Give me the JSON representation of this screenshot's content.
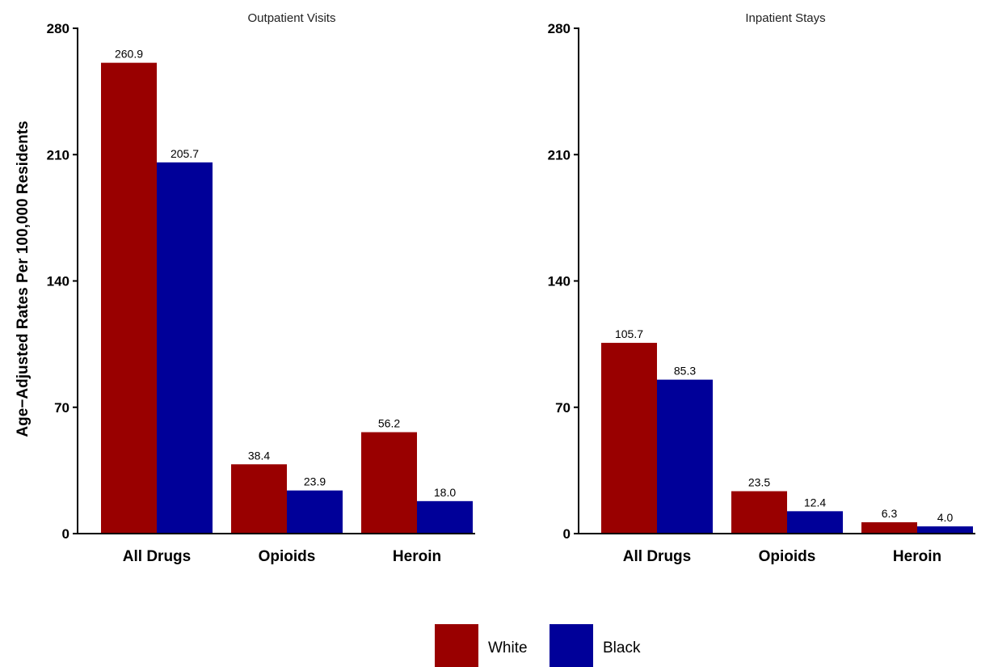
{
  "chart_data": {
    "type": "bar",
    "ylabel": "Age−Adjusted Rates Per 100,000 Residents",
    "ylim": [
      0,
      280
    ],
    "yticks": [
      "0",
      "70",
      "140",
      "210",
      "280"
    ],
    "categories": [
      "All Drugs",
      "Opioids",
      "Heroin"
    ],
    "grid": false,
    "legend_position": "bottom",
    "legend": [
      {
        "name": "White",
        "color": "#990000"
      },
      {
        "name": "Black",
        "color": "#000099"
      }
    ],
    "panels": [
      {
        "title": "Outpatient Visits",
        "series": [
          {
            "name": "White",
            "values": [
              260.9,
              38.4,
              56.2
            ],
            "labels": [
              "260.9",
              "38.4",
              "56.2"
            ]
          },
          {
            "name": "Black",
            "values": [
              205.7,
              23.9,
              18.0
            ],
            "labels": [
              "205.7",
              "23.9",
              "18.0"
            ]
          }
        ]
      },
      {
        "title": "Inpatient Stays",
        "series": [
          {
            "name": "White",
            "values": [
              105.7,
              23.5,
              6.3
            ],
            "labels": [
              "105.7",
              "23.5",
              "6.3"
            ]
          },
          {
            "name": "Black",
            "values": [
              85.3,
              12.4,
              4.0
            ],
            "labels": [
              "85.3",
              "12.4",
              "4.0"
            ]
          }
        ]
      }
    ]
  }
}
